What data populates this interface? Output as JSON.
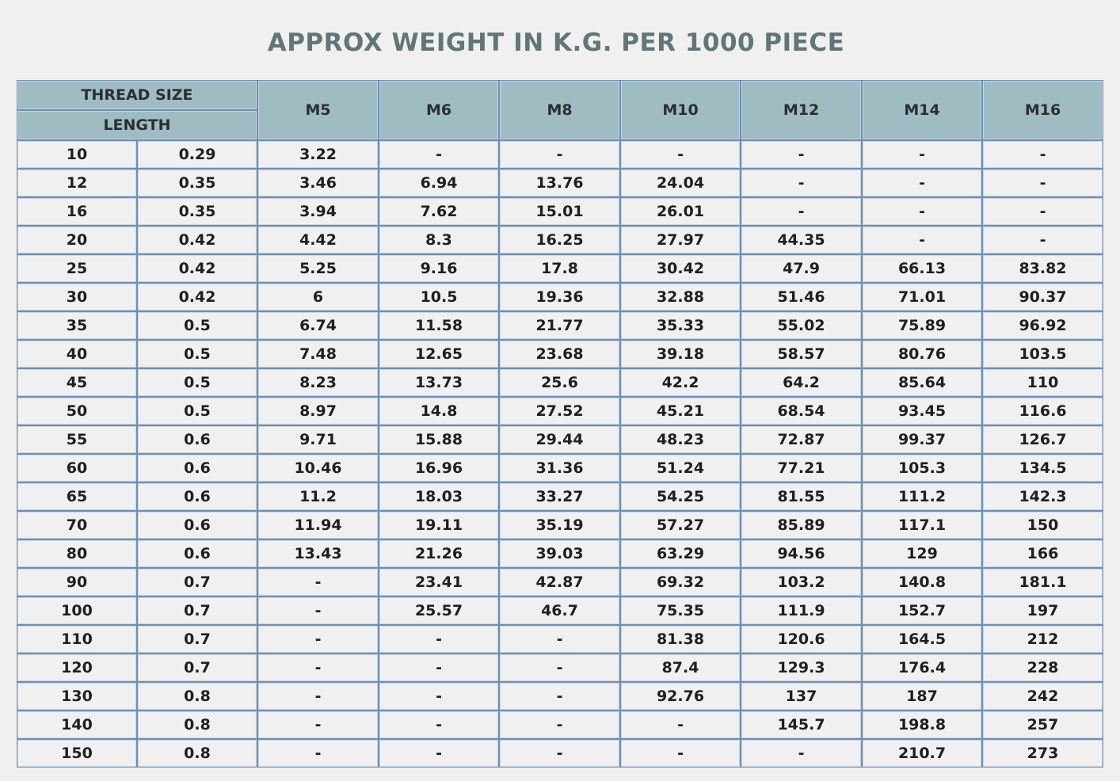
{
  "title": "APPROX WEIGHT IN K.G. PER 1000 PIECE",
  "table": {
    "thread_size_label": "THREAD SIZE",
    "length_label": "LENGTH",
    "columns": [
      "M5",
      "M6",
      "M8",
      "M10",
      "M12",
      "M14",
      "M16"
    ],
    "rows": [
      {
        "length": "10",
        "pitch": "0.29",
        "values": [
          "3.22",
          "-",
          "-",
          "-",
          "-",
          "-",
          "-"
        ]
      },
      {
        "length": "12",
        "pitch": "0.35",
        "values": [
          "3.46",
          "6.94",
          "13.76",
          "24.04",
          "-",
          "-",
          "-"
        ]
      },
      {
        "length": "16",
        "pitch": "0.35",
        "values": [
          "3.94",
          "7.62",
          "15.01",
          "26.01",
          "-",
          "-",
          "-"
        ]
      },
      {
        "length": "20",
        "pitch": "0.42",
        "values": [
          "4.42",
          "8.3",
          "16.25",
          "27.97",
          "44.35",
          "-",
          "-"
        ]
      },
      {
        "length": "25",
        "pitch": "0.42",
        "values": [
          "5.25",
          "9.16",
          "17.8",
          "30.42",
          "47.9",
          "66.13",
          "83.82"
        ]
      },
      {
        "length": "30",
        "pitch": "0.42",
        "values": [
          "6",
          "10.5",
          "19.36",
          "32.88",
          "51.46",
          "71.01",
          "90.37"
        ]
      },
      {
        "length": "35",
        "pitch": "0.5",
        "values": [
          "6.74",
          "11.58",
          "21.77",
          "35.33",
          "55.02",
          "75.89",
          "96.92"
        ]
      },
      {
        "length": "40",
        "pitch": "0.5",
        "values": [
          "7.48",
          "12.65",
          "23.68",
          "39.18",
          "58.57",
          "80.76",
          "103.5"
        ]
      },
      {
        "length": "45",
        "pitch": "0.5",
        "values": [
          "8.23",
          "13.73",
          "25.6",
          "42.2",
          "64.2",
          "85.64",
          "110"
        ]
      },
      {
        "length": "50",
        "pitch": "0.5",
        "values": [
          "8.97",
          "14.8",
          "27.52",
          "45.21",
          "68.54",
          "93.45",
          "116.6"
        ]
      },
      {
        "length": "55",
        "pitch": "0.6",
        "values": [
          "9.71",
          "15.88",
          "29.44",
          "48.23",
          "72.87",
          "99.37",
          "126.7"
        ]
      },
      {
        "length": "60",
        "pitch": "0.6",
        "values": [
          "10.46",
          "16.96",
          "31.36",
          "51.24",
          "77.21",
          "105.3",
          "134.5"
        ]
      },
      {
        "length": "65",
        "pitch": "0.6",
        "values": [
          "11.2",
          "18.03",
          "33.27",
          "54.25",
          "81.55",
          "111.2",
          "142.3"
        ]
      },
      {
        "length": "70",
        "pitch": "0.6",
        "values": [
          "11.94",
          "19.11",
          "35.19",
          "57.27",
          "85.89",
          "117.1",
          "150"
        ]
      },
      {
        "length": "80",
        "pitch": "0.6",
        "values": [
          "13.43",
          "21.26",
          "39.03",
          "63.29",
          "94.56",
          "129",
          "166"
        ]
      },
      {
        "length": "90",
        "pitch": "0.7",
        "values": [
          "-",
          "23.41",
          "42.87",
          "69.32",
          "103.2",
          "140.8",
          "181.1"
        ]
      },
      {
        "length": "100",
        "pitch": "0.7",
        "values": [
          "-",
          "25.57",
          "46.7",
          "75.35",
          "111.9",
          "152.7",
          "197"
        ]
      },
      {
        "length": "110",
        "pitch": "0.7",
        "values": [
          "-",
          "-",
          "-",
          "81.38",
          "120.6",
          "164.5",
          "212"
        ]
      },
      {
        "length": "120",
        "pitch": "0.7",
        "values": [
          "-",
          "-",
          "-",
          "87.4",
          "129.3",
          "176.4",
          "228"
        ]
      },
      {
        "length": "130",
        "pitch": "0.8",
        "values": [
          "-",
          "-",
          "-",
          "92.76",
          "137",
          "187",
          "242"
        ]
      },
      {
        "length": "140",
        "pitch": "0.8",
        "values": [
          "-",
          "-",
          "-",
          "-",
          "145.7",
          "198.8",
          "257"
        ]
      },
      {
        "length": "150",
        "pitch": "0.8",
        "values": [
          "-",
          "-",
          "-",
          "-",
          "-",
          "210.7",
          "273"
        ]
      }
    ]
  },
  "colors": {
    "title": "#627676",
    "header_bg": "#9fbcc2",
    "border": "#6e8fb4",
    "page_bg": "#f0f0f1"
  }
}
